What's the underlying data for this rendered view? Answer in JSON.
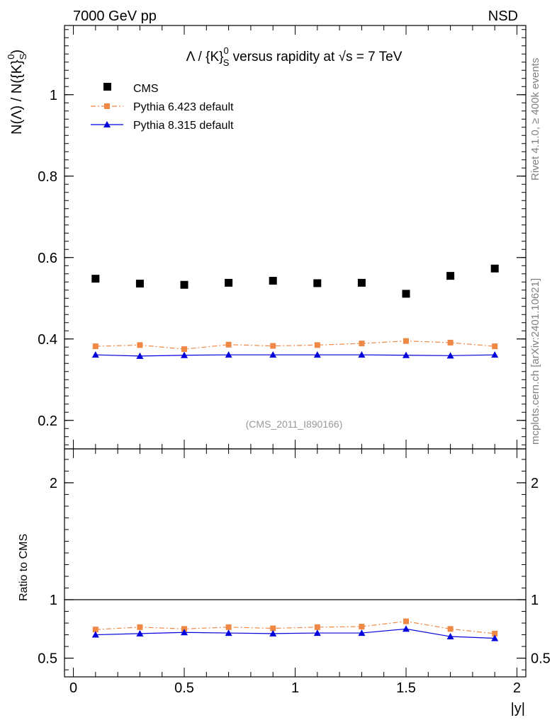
{
  "header": {
    "left": "7000 GeV pp",
    "right": "NSD"
  },
  "side": {
    "rivet": "Rivet 4.1.0, ≥ 400k events",
    "mcplots": "mcplots.cern.ch [arXiv:2401.10621]"
  },
  "chart_data": [
    {
      "type": "scatter",
      "title": "Λ / {K}_S^0 versus rapidity at √s = 7 TeV",
      "title_parts": {
        "lambda": "Λ",
        "slash": " / {K}",
        "sup": "0",
        "sub": "S",
        "mid": " versus rapidity at ",
        "sqrt": "√",
        "end": "s = 7 TeV"
      },
      "ylabel": "N(Λ)  /  N({K}_S^0)",
      "ylabel_parts": {
        "main": "N(Λ)  /  N({K}",
        "sub": "S",
        "sup": "0",
        "close": ")"
      },
      "xlabel": "",
      "watermark": "(CMS_2011_I890166)",
      "xlim": [
        -0.04,
        2.04
      ],
      "ylim": [
        0.13,
        1.17
      ],
      "yticks": [
        0.2,
        0.4,
        0.6,
        0.8,
        1.0
      ],
      "yticklabels": [
        "0.2",
        "0.4",
        "0.6",
        "0.8",
        "1"
      ],
      "x": [
        0.1,
        0.3,
        0.5,
        0.7,
        0.9,
        1.1,
        1.3,
        1.5,
        1.7,
        1.9
      ],
      "series": [
        {
          "name": "CMS",
          "color": "#000000",
          "marker": "square",
          "line": "none",
          "values": [
            0.548,
            0.536,
            0.533,
            0.538,
            0.543,
            0.537,
            0.538,
            0.511,
            0.555,
            0.573
          ]
        },
        {
          "name": "Pythia 6.423 default",
          "color": "#ee8844",
          "marker": "square-small",
          "line": "dashdot",
          "values": [
            0.382,
            0.385,
            0.375,
            0.386,
            0.383,
            0.385,
            0.389,
            0.395,
            0.391,
            0.382
          ]
        },
        {
          "name": "Pythia 8.315 default",
          "color": "#0000dd",
          "marker": "triangle",
          "line": "solid",
          "values": [
            0.361,
            0.358,
            0.36,
            0.361,
            0.361,
            0.361,
            0.361,
            0.36,
            0.359,
            0.361
          ]
        }
      ],
      "legend": "top-left"
    },
    {
      "type": "line",
      "title": "",
      "ylabel": "Ratio to CMS",
      "xlabel": "|y|",
      "xlim": [
        -0.04,
        2.04
      ],
      "ylim": [
        0.34,
        2.29
      ],
      "xticks": [
        0,
        0.5,
        1,
        1.5,
        2
      ],
      "xticklabels": [
        "0",
        "0.5",
        "1",
        "1.5",
        "2"
      ],
      "yticks": [
        0.5,
        1,
        2
      ],
      "yticklabels": [
        "0.5",
        "1",
        "2"
      ],
      "reference_line": 1,
      "x": [
        0.1,
        0.3,
        0.5,
        0.7,
        0.9,
        1.1,
        1.3,
        1.5,
        1.7,
        1.9
      ],
      "series": [
        {
          "name": "Pythia 6.423 default",
          "color": "#ee8844",
          "values": [
            0.745,
            0.765,
            0.75,
            0.765,
            0.755,
            0.765,
            0.77,
            0.815,
            0.75,
            0.71
          ]
        },
        {
          "name": "Pythia 8.315 default",
          "color": "#0000dd",
          "values": [
            0.7,
            0.71,
            0.72,
            0.715,
            0.71,
            0.715,
            0.715,
            0.75,
            0.685,
            0.67
          ]
        }
      ]
    }
  ]
}
